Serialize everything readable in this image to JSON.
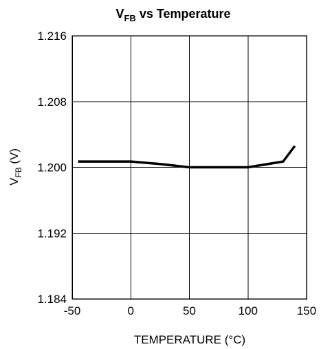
{
  "chart_data": {
    "type": "line",
    "title_main": "V",
    "title_sub": "FB",
    "title_rest": " vs Temperature",
    "xlabel": "TEMPERATURE (°C)",
    "ylabel_main": "V",
    "ylabel_sub": "FB",
    "ylabel_rest": " (V)",
    "xlim": [
      -50,
      150
    ],
    "ylim": [
      1.184,
      1.216
    ],
    "xticks": [
      "-50",
      "0",
      "50",
      "100",
      "150"
    ],
    "yticks": [
      "1.216",
      "1.208",
      "1.200",
      "1.192",
      "1.184"
    ],
    "grid": true,
    "series": [
      {
        "x": [
          -45,
          0,
          25,
          50,
          75,
          100,
          130,
          140
        ],
        "y": [
          1.2007,
          1.2007,
          1.2004,
          1.2,
          1.2,
          1.2,
          1.2007,
          1.2026
        ]
      }
    ],
    "line_color": "#000000"
  }
}
